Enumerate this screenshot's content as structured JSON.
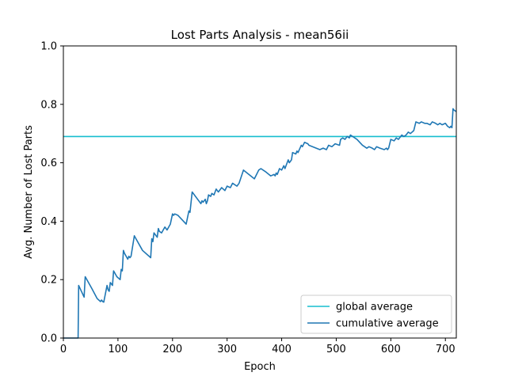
{
  "chart_data": {
    "type": "line",
    "title": "Lost Parts Analysis - mean56ii",
    "xlabel": "Epoch",
    "ylabel": "Avg. Number of Lost Parts",
    "xlim": [
      0,
      720
    ],
    "ylim": [
      0.0,
      1.0
    ],
    "x_ticks": [
      0,
      100,
      200,
      300,
      400,
      500,
      600,
      700
    ],
    "y_ticks": [
      0.0,
      0.2,
      0.4,
      0.6,
      0.8,
      1.0
    ],
    "x_tick_labels": [
      "0",
      "100",
      "200",
      "300",
      "400",
      "500",
      "600",
      "700"
    ],
    "y_tick_labels": [
      "0.0",
      "0.2",
      "0.4",
      "0.6",
      "0.8",
      "1.0"
    ],
    "grid": false,
    "legend_position": "bottom-right",
    "series": [
      {
        "name": "global average",
        "color": "#17becf",
        "x": [
          0,
          720
        ],
        "y": [
          0.69,
          0.69
        ]
      },
      {
        "name": "cumulative average",
        "color": "#1f77b4",
        "x": [
          0,
          27,
          27,
          28,
          38,
          40,
          52,
          62,
          68,
          70,
          72,
          74,
          80,
          82,
          84,
          86,
          90,
          92,
          98,
          104,
          106,
          108,
          110,
          112,
          118,
          120,
          122,
          124,
          130,
          145,
          160,
          162,
          164,
          166,
          170,
          172,
          174,
          176,
          180,
          186,
          190,
          196,
          200,
          202,
          204,
          210,
          225,
          230,
          232,
          236,
          248,
          252,
          254,
          256,
          260,
          262,
          264,
          266,
          270,
          272,
          276,
          278,
          280,
          284,
          290,
          296,
          300,
          306,
          310,
          318,
          322,
          330,
          350,
          354,
          358,
          362,
          370,
          380,
          386,
          388,
          390,
          392,
          396,
          400,
          404,
          406,
          410,
          412,
          414,
          418,
          420,
          426,
          428,
          430,
          436,
          438,
          442,
          448,
          450,
          470,
          476,
          482,
          486,
          492,
          498,
          506,
          508,
          512,
          516,
          520,
          524,
          526,
          530,
          538,
          548,
          552,
          556,
          560,
          566,
          570,
          574,
          580,
          588,
          592,
          594,
          596,
          600,
          606,
          610,
          614,
          620,
          624,
          628,
          632,
          636,
          642,
          646,
          652,
          656,
          662,
          666,
          672,
          676,
          682,
          686,
          690,
          694,
          700,
          704,
          708,
          710,
          712,
          714,
          716,
          720
        ],
        "y": [
          0.0,
          0.0,
          0.0,
          0.18,
          0.14,
          0.21,
          0.17,
          0.135,
          0.125,
          0.13,
          0.125,
          0.123,
          0.18,
          0.165,
          0.16,
          0.19,
          0.18,
          0.23,
          0.21,
          0.2,
          0.235,
          0.23,
          0.3,
          0.29,
          0.27,
          0.28,
          0.275,
          0.28,
          0.35,
          0.3,
          0.275,
          0.34,
          0.33,
          0.36,
          0.35,
          0.345,
          0.375,
          0.365,
          0.36,
          0.38,
          0.37,
          0.39,
          0.425,
          0.42,
          0.425,
          0.42,
          0.39,
          0.435,
          0.43,
          0.5,
          0.47,
          0.46,
          0.47,
          0.465,
          0.475,
          0.46,
          0.47,
          0.49,
          0.485,
          0.495,
          0.49,
          0.5,
          0.51,
          0.5,
          0.515,
          0.505,
          0.52,
          0.515,
          0.53,
          0.52,
          0.53,
          0.575,
          0.545,
          0.56,
          0.575,
          0.58,
          0.57,
          0.555,
          0.56,
          0.555,
          0.565,
          0.56,
          0.58,
          0.575,
          0.59,
          0.58,
          0.6,
          0.61,
          0.6,
          0.61,
          0.635,
          0.63,
          0.64,
          0.635,
          0.66,
          0.655,
          0.67,
          0.665,
          0.66,
          0.645,
          0.65,
          0.645,
          0.66,
          0.655,
          0.665,
          0.66,
          0.68,
          0.685,
          0.68,
          0.69,
          0.685,
          0.695,
          0.69,
          0.68,
          0.66,
          0.655,
          0.65,
          0.655,
          0.65,
          0.645,
          0.655,
          0.65,
          0.645,
          0.65,
          0.645,
          0.65,
          0.68,
          0.675,
          0.685,
          0.68,
          0.695,
          0.69,
          0.695,
          0.705,
          0.7,
          0.71,
          0.74,
          0.735,
          0.74,
          0.735,
          0.735,
          0.73,
          0.74,
          0.735,
          0.73,
          0.735,
          0.73,
          0.735,
          0.725,
          0.72,
          0.725,
          0.72,
          0.785,
          0.78,
          0.775
        ]
      }
    ]
  }
}
